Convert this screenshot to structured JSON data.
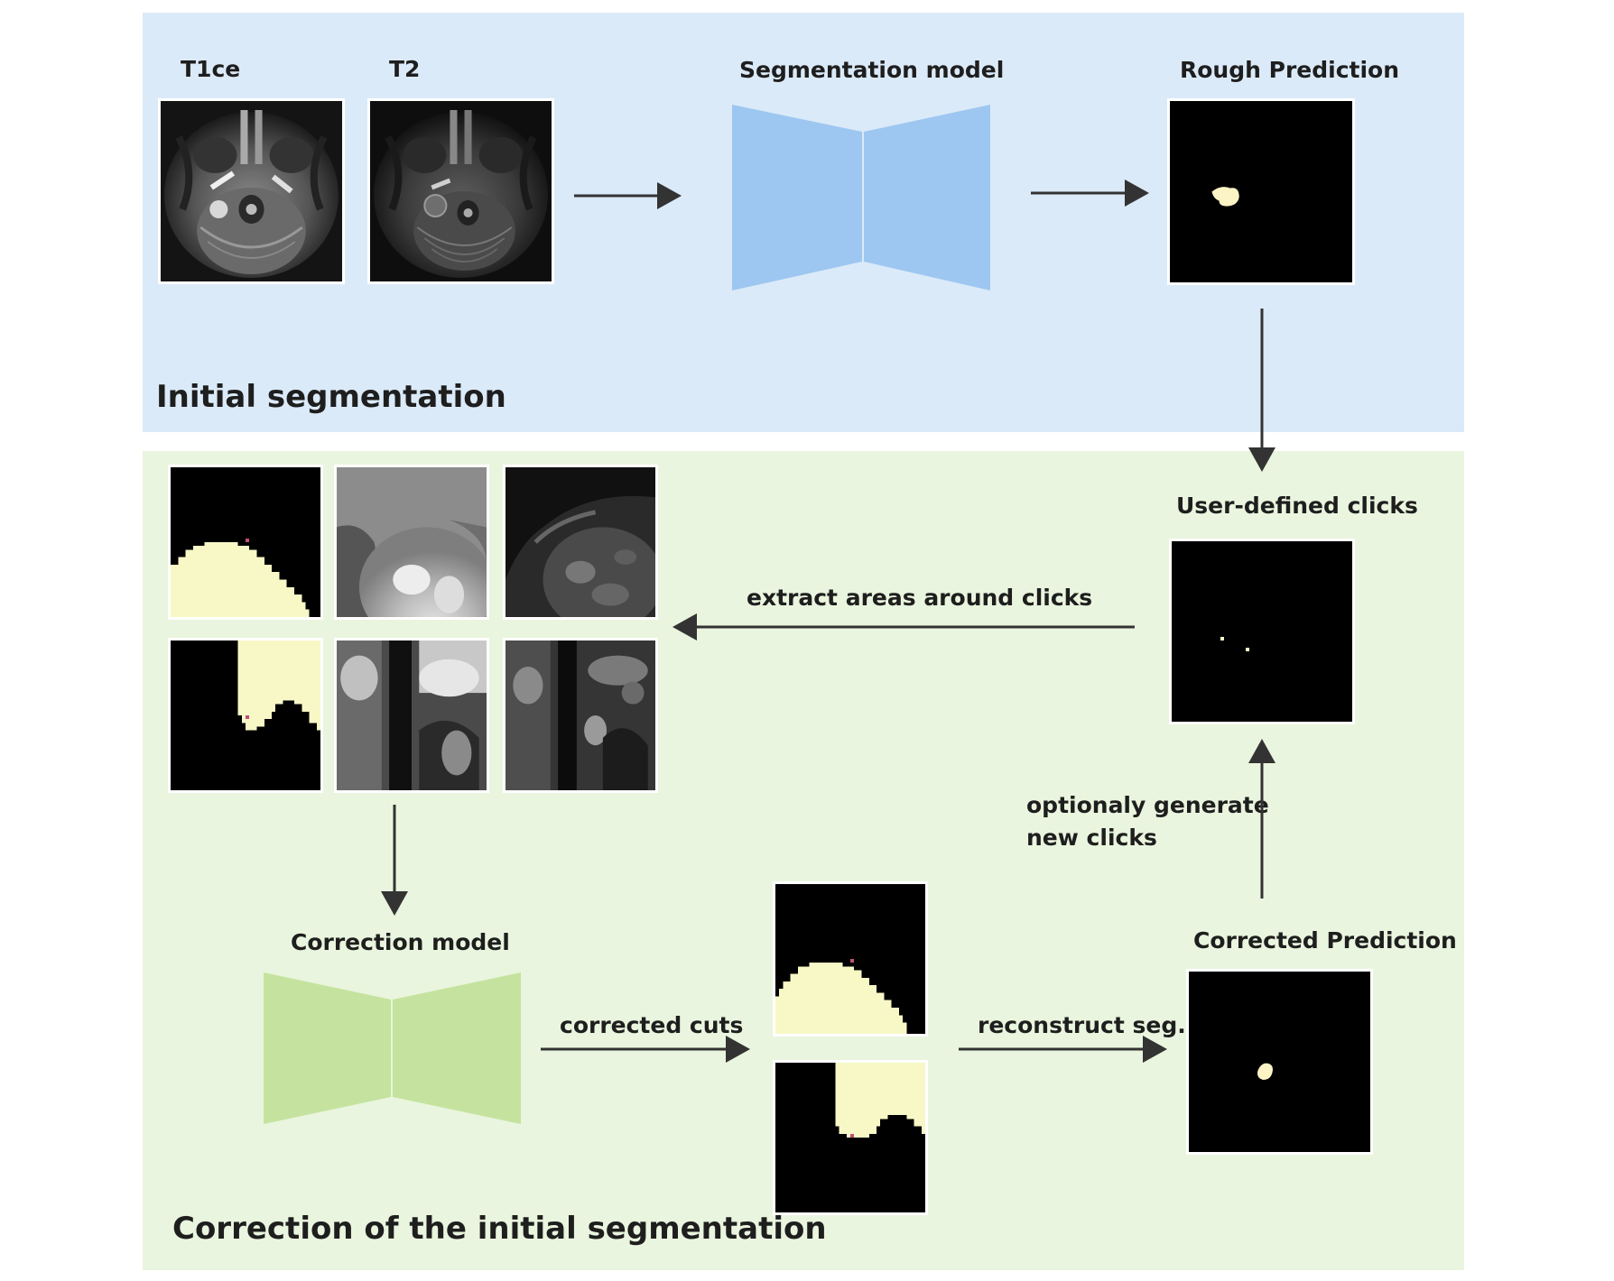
{
  "top_section": {
    "title": "Initial segmentation",
    "inputs": [
      {
        "label": "T1ce"
      },
      {
        "label": "T2"
      }
    ],
    "model_label": "Segmentation model",
    "output_label": "Rough Prediction"
  },
  "bottom_section": {
    "title": "Correction of the initial segmentation",
    "clicks_label": "User-defined clicks",
    "extract_label": "extract areas around clicks",
    "optional_label_line1": "optionaly generate",
    "optional_label_line2": "new clicks",
    "correction_model_label": "Correction model",
    "corrected_cuts_label": "corrected cuts",
    "reconstruct_label": "reconstruct seg.",
    "corrected_prediction_label": "Corrected Prediction"
  },
  "colors": {
    "top_panel": "#dbeaf8",
    "bottom_panel": "#e9f5de",
    "seg_model": "#9dc7f1",
    "correction_model": "#c5e39e",
    "mask_fill": "#f7f8c6",
    "click_marker": "#c0507a",
    "arrow": "#333333"
  }
}
